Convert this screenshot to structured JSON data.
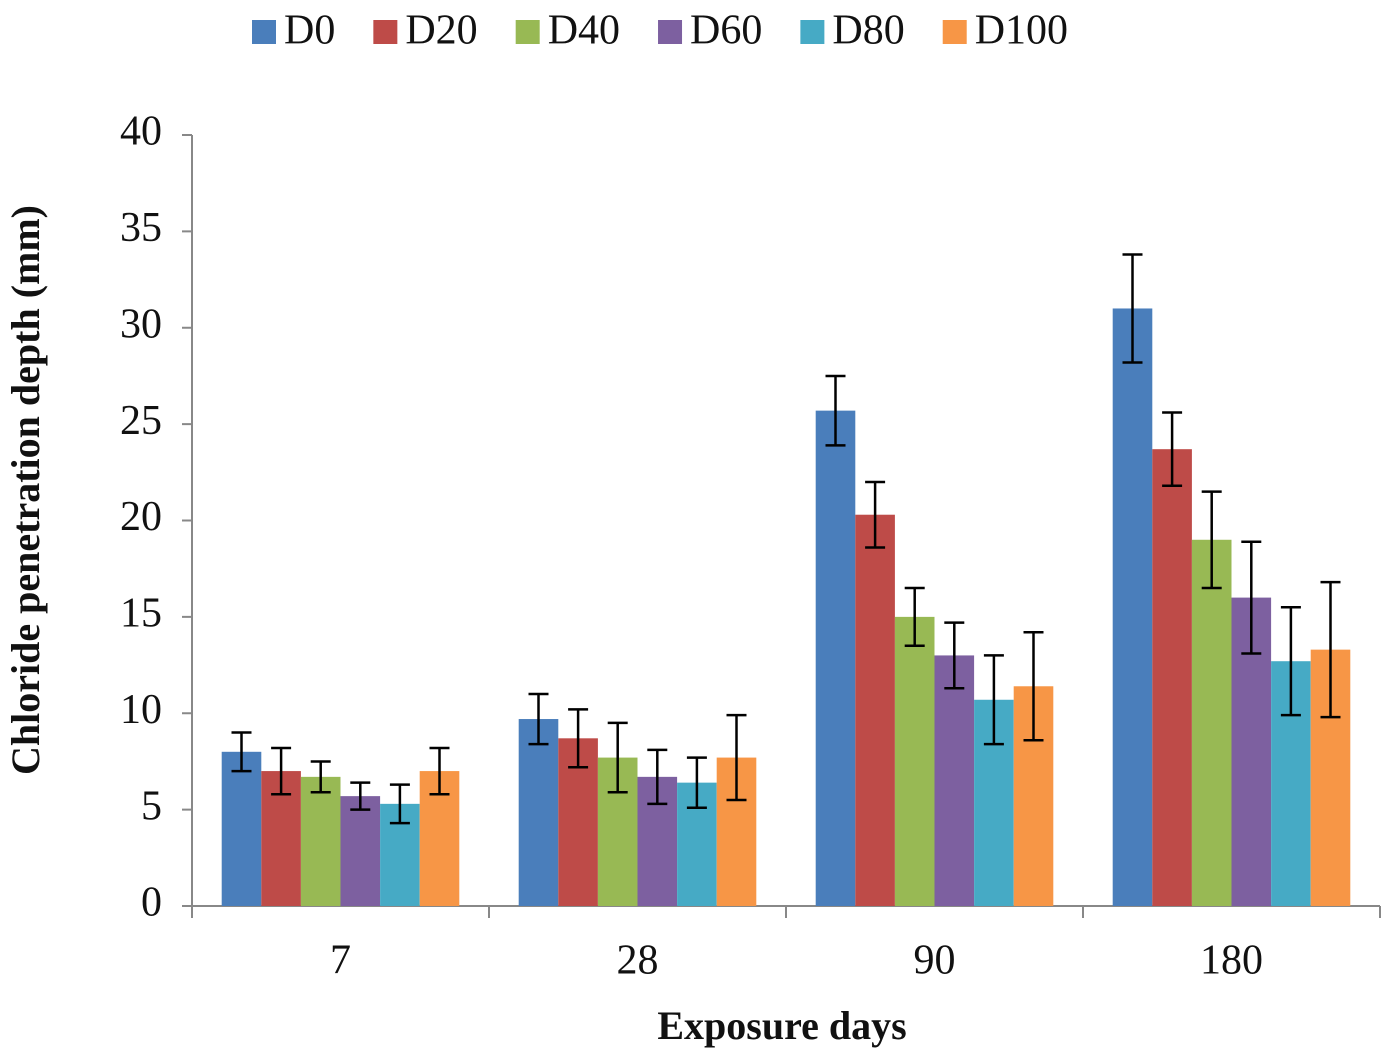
{
  "chart_data": {
    "type": "bar",
    "x_label": "Exposure days",
    "y_label": "Chloride penetration depth (mm)",
    "categories": [
      "7",
      "28",
      "90",
      "180"
    ],
    "series": [
      {
        "name": "D0",
        "color": "#4a7ebb",
        "values": [
          8.0,
          9.7,
          25.7,
          31.0
        ],
        "errors": [
          1.0,
          1.3,
          1.8,
          2.8
        ]
      },
      {
        "name": "D20",
        "color": "#be4b48",
        "values": [
          7.0,
          8.7,
          20.3,
          23.7
        ],
        "errors": [
          1.2,
          1.5,
          1.7,
          1.9
        ]
      },
      {
        "name": "D40",
        "color": "#98b954",
        "values": [
          6.7,
          7.7,
          15.0,
          19.0
        ],
        "errors": [
          0.8,
          1.8,
          1.5,
          2.5
        ]
      },
      {
        "name": "D60",
        "color": "#7d60a0",
        "values": [
          5.7,
          6.7,
          13.0,
          16.0
        ],
        "errors": [
          0.7,
          1.4,
          1.7,
          2.9
        ]
      },
      {
        "name": "D80",
        "color": "#46aac5",
        "values": [
          5.3,
          6.4,
          10.7,
          12.7
        ],
        "errors": [
          1.0,
          1.3,
          2.3,
          2.8
        ]
      },
      {
        "name": "D100",
        "color": "#f79646",
        "values": [
          7.0,
          7.7,
          11.4,
          13.3
        ],
        "errors": [
          1.2,
          2.2,
          2.8,
          3.5
        ]
      }
    ],
    "ylim": [
      0,
      40
    ],
    "yticks": [
      0,
      5,
      10,
      15,
      20,
      25,
      30,
      35,
      40
    ],
    "grid": false,
    "legend": "top"
  }
}
